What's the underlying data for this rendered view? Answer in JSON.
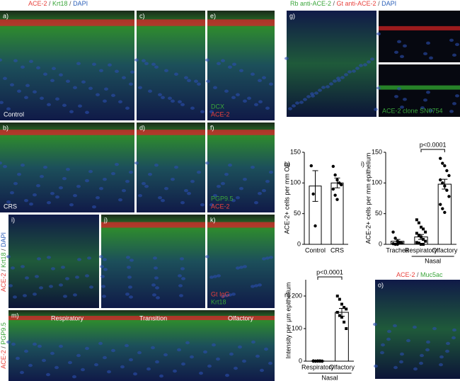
{
  "figure": {
    "headers": [
      [
        {
          "text": "ACE-2",
          "color": "#e8413c"
        },
        {
          "text": " / ",
          "color": "#555555"
        },
        {
          "text": "Krt18",
          "color": "#3aa63a"
        },
        {
          "text": " / ",
          "color": "#555555"
        },
        {
          "text": "DAPI",
          "color": "#2b5fb8"
        }
      ],
      [
        {
          "text": "Rb anti-ACE-2",
          "color": "#3aa63a"
        },
        {
          "text": " / ",
          "color": "#555555"
        },
        {
          "text": "Gt anti-ACE-2",
          "color": "#e8413c"
        },
        {
          "text": " / ",
          "color": "#555555"
        },
        {
          "text": "DAPI",
          "color": "#2b5fb8"
        }
      ],
      [
        {
          "text": "ACE-2",
          "color": "#e8413c"
        },
        {
          "text": " / ",
          "color": "#555555"
        },
        {
          "text": "Muc5ac",
          "color": "#3aa63a"
        }
      ]
    ],
    "side_labels": [
      [
        {
          "text": "ACE-2",
          "color": "#e8413c"
        },
        {
          "text": " / ",
          "color": "#555555"
        },
        {
          "text": "Krt18",
          "color": "#3aa63a"
        },
        {
          "text": " / ",
          "color": "#555555"
        },
        {
          "text": "DAPI",
          "color": "#2b5fb8"
        }
      ],
      [
        {
          "text": "ACE-2",
          "color": "#e8413c"
        },
        {
          "text": " / ",
          "color": "#555555"
        },
        {
          "text": "PGP9.5",
          "color": "#3aa63a"
        }
      ]
    ],
    "panels": [
      {
        "letter": "a)",
        "labels": [
          {
            "text": "Control",
            "color": "#ffffff"
          }
        ]
      },
      {
        "letter": "c)",
        "labels": []
      },
      {
        "letter": "e)",
        "labels": [
          {
            "text": "DCX",
            "color": "#3aa63a"
          },
          {
            "text": "ACE-2",
            "color": "#e8413c"
          }
        ]
      },
      {
        "letter": "g)",
        "labels": []
      },
      {
        "letter": "",
        "labels": []
      },
      {
        "letter": "",
        "labels": [
          {
            "text": "ACE-2 clone SN0754",
            "color": "#3aa63a"
          }
        ]
      },
      {
        "letter": "b)",
        "labels": [
          {
            "text": "CRS",
            "color": "#ffffff"
          }
        ]
      },
      {
        "letter": "d)",
        "labels": []
      },
      {
        "letter": "f)",
        "labels": [
          {
            "text": "PGP9.5",
            "color": "#3aa63a"
          },
          {
            "text": "ACE-2",
            "color": "#e8413c"
          }
        ]
      },
      {
        "letter": "i)",
        "labels": []
      },
      {
        "letter": "j)",
        "labels": []
      },
      {
        "letter": "k)",
        "labels": [
          {
            "text": "Gt IgG",
            "color": "#e8413c"
          },
          {
            "text": "Krt18",
            "color": "#3aa63a"
          }
        ]
      },
      {
        "letter": "m)",
        "labels": [],
        "regions": [
          "Respiratory",
          "Transition",
          "Olfactory"
        ]
      },
      {
        "letter": "o)",
        "labels": []
      }
    ]
  },
  "chart_data": [
    {
      "type": "bar",
      "letter": "h)",
      "ylabel": "ACE-2+ cells per mm OE",
      "categories": [
        "Control",
        "CRS"
      ],
      "values": [
        95,
        100
      ],
      "errors": [
        25,
        8
      ],
      "points": [
        [
          128,
          82,
          30
        ],
        [
          127,
          113,
          105,
          100,
          97,
          90,
          80,
          73
        ]
      ],
      "markers": [
        "circle",
        "circle"
      ],
      "ylim": [
        0,
        150
      ],
      "yticks": [
        0,
        50,
        100,
        150
      ]
    },
    {
      "type": "bar",
      "letter": "i)",
      "ylabel": "ACE-2+ cells per mm epithelium",
      "categories": [
        "Trachea",
        "Respiratory",
        "Olfactory"
      ],
      "values": [
        5,
        12,
        98
      ],
      "errors": [
        3,
        4,
        8
      ],
      "points": [
        [
          20,
          10,
          5,
          3,
          2,
          1,
          0,
          0
        ],
        [
          40,
          35,
          28,
          25,
          20,
          18,
          15,
          12,
          8,
          5,
          3,
          2,
          0,
          0
        ],
        [
          140,
          132,
          128,
          120,
          112,
          105,
          100,
          95,
          88,
          78,
          65,
          58,
          52
        ]
      ],
      "markers": [
        "circle",
        "square",
        "circle"
      ],
      "ylim": [
        0,
        150
      ],
      "yticks": [
        0,
        50,
        100,
        150
      ],
      "annotation": "p<0.0001",
      "group": "Nasal"
    },
    {
      "type": "bar",
      "letter": "n)",
      "ylabel": "Intensity per µm epithelium",
      "categories": [
        "Respiratory",
        "Olfactory"
      ],
      "values": [
        0.5,
        150
      ],
      "errors": [
        0.5,
        12
      ],
      "points": [
        [
          1,
          0,
          0,
          1,
          0,
          0,
          0,
          1,
          0,
          0
        ],
        [
          200,
          190,
          175,
          165,
          160,
          150,
          140,
          135,
          120,
          100
        ]
      ],
      "markers": [
        "circle",
        "square"
      ],
      "ylim": [
        0,
        250
      ],
      "yticks": [
        0,
        100,
        200
      ],
      "annotation": "p<0.0001",
      "group": "Nasal"
    }
  ]
}
